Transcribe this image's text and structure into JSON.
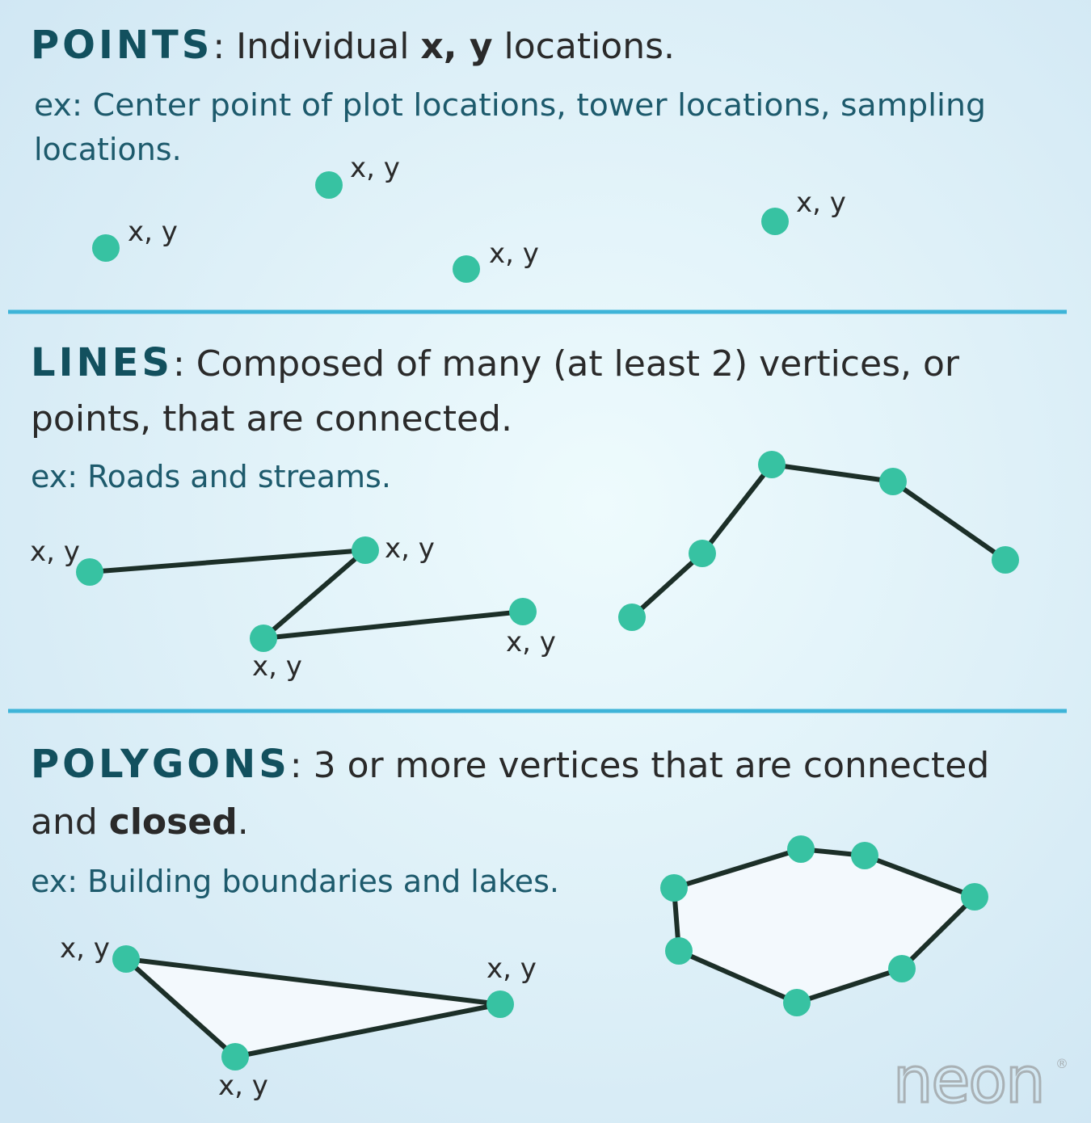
{
  "colors": {
    "background_center": "#eefbfd",
    "background_edge": "#cfe6f3",
    "heading": "#12505e",
    "example_text": "#1d5a6c",
    "body_text": "#2a2a2a",
    "divider": "#3eb4d8",
    "point": "#37c2a2",
    "line": "#1c2f28",
    "polygon_fill": "#f3f9fd",
    "logo": "#a9b1b5"
  },
  "points_section": {
    "keyword": "POINTS",
    "description_prefix": ": Individual ",
    "description_bold": "x, y",
    "description_suffix": " locations.",
    "example_line1": "ex: Center point of plot locations, tower locations, sampling",
    "example_line2": "locations.",
    "point_label": "x, y"
  },
  "lines_section": {
    "keyword": "LINES",
    "description_line1": ": Composed of many (at least 2) vertices, or",
    "description_line2": "points, that are connected.",
    "example": "ex: Roads and streams.",
    "vertex_label": "x, y"
  },
  "polygons_section": {
    "keyword": "POLYGONS",
    "description_line1": ": 3 or more vertices that are connected",
    "description_line2_prefix": "and ",
    "description_line2_bold": "closed",
    "description_line2_suffix": ".",
    "example": "ex: Building boundaries and lakes.",
    "vertex_label": "x, y"
  },
  "logo": {
    "text": "neon",
    "mark": "®"
  }
}
